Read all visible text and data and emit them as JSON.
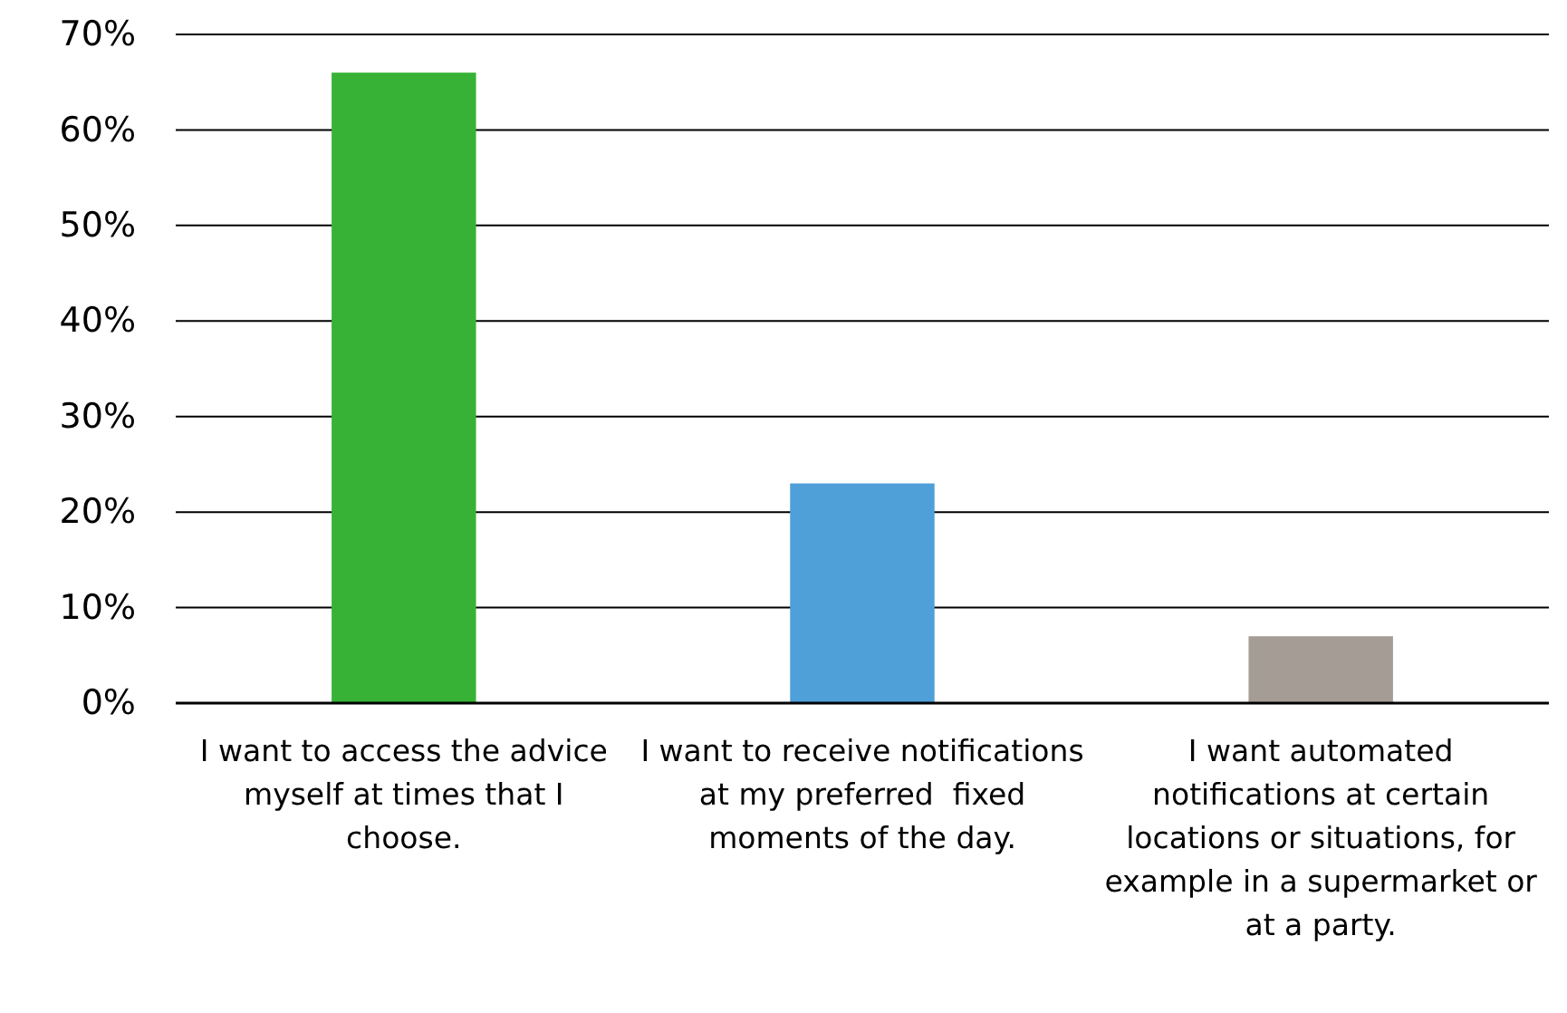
{
  "chart_data": {
    "type": "bar",
    "categories": [
      "I want to access the advice myself at times that I choose.",
      "I want to receive notifications at my preferred  fixed moments of the day.",
      "I want automated notifications at certain locations or situations, for example in a supermarket or at a party."
    ],
    "values": [
      66,
      23,
      7
    ],
    "colors": [
      "#37b236",
      "#4f9fd9",
      "#a59c95"
    ],
    "ylim": [
      0,
      70
    ],
    "yticks": [
      {
        "value": 0,
        "label": "0%"
      },
      {
        "value": 10,
        "label": "10%"
      },
      {
        "value": 20,
        "label": "20%"
      },
      {
        "value": 30,
        "label": "30%"
      },
      {
        "value": 40,
        "label": "40%"
      },
      {
        "value": 50,
        "label": "50%"
      },
      {
        "value": 60,
        "label": "60%"
      },
      {
        "value": 70,
        "label": "70%"
      }
    ],
    "grid": "y"
  }
}
